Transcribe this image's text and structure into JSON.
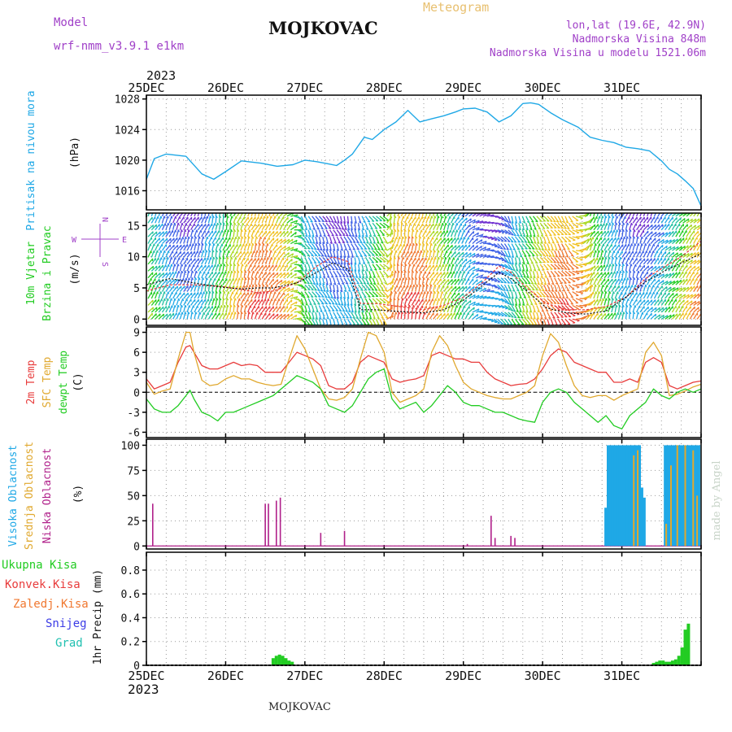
{
  "header": {
    "model_label": "Model",
    "model_name": "wrf-nmm_v3.9.1 e1km",
    "title": "MOJKOVAC",
    "subtitle": "Meteogram",
    "coords": "lon,lat (19.6E, 42.9N)",
    "altitude": "Nadmorska Visina 848m",
    "model_altitude": "Nadmorska Visina u modelu 1521.06m",
    "year": "2023",
    "footer": "MOJKOVAC",
    "credit": "made by Angel"
  },
  "colors": {
    "pressure": "#1fa8e6",
    "t2m": "#e83c3c",
    "sfc": "#e0a82e",
    "dewpt": "#22cc22",
    "high_cloud": "#1fa8e6",
    "mid_cloud": "#e0a82e",
    "low_cloud": "#b0208a",
    "total_precip": "#22cc22",
    "conv_precip": "#e83c3c",
    "frozen_precip": "#f07830",
    "snow": "#3c3ce6",
    "hail": "#20c0b0",
    "model_text": "#a040c8",
    "subtitle": "#e8c070",
    "wind_label": "#22cc22",
    "compass": "#a040c8"
  },
  "chart_data": [
    {
      "type": "line",
      "name": "pressure",
      "ylabel_lines": [
        "Pritisak na nivou mora",
        "(hPa)"
      ],
      "ylim": [
        1013.5,
        1028.5
      ],
      "yticks": [
        1016,
        1020,
        1024,
        1028
      ],
      "grid": true,
      "x": [
        0,
        0.1,
        0.25,
        0.5,
        0.7,
        0.85,
        1.0,
        1.2,
        1.45,
        1.65,
        1.85,
        2.0,
        2.15,
        2.3,
        2.4,
        2.5,
        2.6,
        2.75,
        2.85,
        3.0,
        3.15,
        3.3,
        3.45,
        3.6,
        3.75,
        3.9,
        4.0,
        4.15,
        4.3,
        4.45,
        4.6,
        4.75,
        4.85,
        4.95,
        5.1,
        5.25,
        5.45,
        5.6,
        5.75,
        5.9,
        6.05,
        6.2,
        6.35,
        6.5,
        6.6,
        6.7,
        6.8,
        6.9,
        7.0
      ],
      "y": [
        1017.5,
        1020.2,
        1020.8,
        1020.5,
        1018.2,
        1017.5,
        1018.5,
        1019.9,
        1019.6,
        1019.2,
        1019.4,
        1020.0,
        1019.8,
        1019.5,
        1019.3,
        1020.0,
        1020.8,
        1023.0,
        1022.7,
        1024.0,
        1025.0,
        1026.5,
        1025.0,
        1025.4,
        1025.8,
        1026.3,
        1026.7,
        1026.8,
        1026.3,
        1025.0,
        1025.8,
        1027.4,
        1027.5,
        1027.3,
        1026.2,
        1025.3,
        1024.3,
        1023.0,
        1022.6,
        1022.3,
        1021.7,
        1021.5,
        1021.2,
        1019.9,
        1018.8,
        1018.2,
        1017.3,
        1016.3,
        1014.0
      ]
    },
    {
      "type": "line",
      "name": "wind",
      "ylabel_lines": [
        "10m Vjetar",
        "Brzina i Pravac",
        "(m/s)"
      ],
      "compass_labels": [
        "W",
        "E",
        "N",
        "S"
      ],
      "ylim": [
        -1,
        17
      ],
      "yticks": [
        0,
        5,
        10,
        15
      ],
      "grid": true,
      "x": [
        0,
        0.3,
        0.6,
        0.9,
        1.2,
        1.4,
        1.6,
        1.9,
        2.15,
        2.35,
        2.55,
        2.7,
        2.9,
        3.2,
        3.5,
        3.75,
        4.0,
        4.25,
        4.45,
        4.6,
        4.8,
        5.05,
        5.3,
        5.55,
        5.8,
        6.05,
        6.3,
        6.55,
        6.75,
        7.0
      ],
      "speed": [
        5.5,
        6.5,
        5.8,
        5.2,
        4.8,
        5.0,
        5.0,
        5.8,
        7.5,
        9.0,
        8.0,
        1.5,
        1.5,
        1.2,
        1.0,
        1.5,
        3.0,
        5.5,
        7.5,
        6.5,
        4.5,
        1.8,
        1.0,
        0.8,
        1.3,
        3.5,
        6.0,
        7.8,
        9.0,
        10.5
      ],
      "gust": [
        4.5,
        5.5,
        5.5,
        5.3,
        4.8,
        4.2,
        4.5,
        5.8,
        8.5,
        10.0,
        9.2,
        2.5,
        2.5,
        2.0,
        1.5,
        2.2,
        3.5,
        6.0,
        8.5,
        7.5,
        5.0,
        2.5,
        1.5,
        1.5,
        2.0,
        3.5,
        6.5,
        8.5,
        10.0,
        12.5
      ]
    },
    {
      "type": "line",
      "name": "temperature",
      "ylabel_lines": [
        "2m Temp",
        "SFC Temp",
        "dewpt Temp",
        "(C)"
      ],
      "ylim": [
        -6.8,
        9.8
      ],
      "yticks": [
        -6,
        -3,
        0,
        3,
        6,
        9
      ],
      "grid": true,
      "x": [
        0,
        0.1,
        0.2,
        0.3,
        0.4,
        0.5,
        0.55,
        0.6,
        0.7,
        0.8,
        0.9,
        1.0,
        1.1,
        1.2,
        1.3,
        1.4,
        1.5,
        1.6,
        1.7,
        1.8,
        1.9,
        2.0,
        2.1,
        2.2,
        2.3,
        2.4,
        2.5,
        2.6,
        2.7,
        2.8,
        2.9,
        3.0,
        3.1,
        3.2,
        3.3,
        3.4,
        3.5,
        3.6,
        3.7,
        3.8,
        3.9,
        4.0,
        4.1,
        4.2,
        4.3,
        4.4,
        4.5,
        4.6,
        4.7,
        4.8,
        4.9,
        5.0,
        5.1,
        5.2,
        5.3,
        5.4,
        5.5,
        5.6,
        5.7,
        5.8,
        5.9,
        6.0,
        6.1,
        6.2,
        6.3,
        6.4,
        6.5,
        6.6,
        6.7,
        6.8,
        6.9,
        7.0
      ],
      "series": [
        {
          "name": "2m Temp",
          "values": [
            2.0,
            0.5,
            1.0,
            1.5,
            4.5,
            6.8,
            7.0,
            6.0,
            4.0,
            3.5,
            3.5,
            4.0,
            4.5,
            4.0,
            4.2,
            4.0,
            3.0,
            3.0,
            3.0,
            4.5,
            6.0,
            5.5,
            5.0,
            4.0,
            1.0,
            0.5,
            0.5,
            1.5,
            4.5,
            5.5,
            5.0,
            4.5,
            2.0,
            1.5,
            1.8,
            2.0,
            2.5,
            5.5,
            6.0,
            5.5,
            5.0,
            5.0,
            4.5,
            4.5,
            3.0,
            2.0,
            1.5,
            1.0,
            1.2,
            1.3,
            2.0,
            3.5,
            5.5,
            6.5,
            6.0,
            4.5,
            4.0,
            3.5,
            3.0,
            3.0,
            1.5,
            1.5,
            2.0,
            1.5,
            4.5,
            5.2,
            4.5,
            1.0,
            0.5,
            1.0,
            1.5,
            1.7
          ]
        },
        {
          "name": "SFC Temp",
          "values": [
            1.5,
            -0.3,
            0.2,
            0.5,
            5.0,
            9.0,
            9.0,
            6.0,
            1.8,
            1.0,
            1.2,
            2.0,
            2.5,
            2.0,
            2.0,
            1.5,
            1.2,
            1.0,
            1.2,
            5.0,
            8.5,
            6.5,
            3.5,
            0.5,
            -1.0,
            -1.2,
            -0.8,
            0.5,
            5.0,
            9.0,
            8.5,
            6.0,
            0.0,
            -1.5,
            -1.0,
            -0.5,
            0.5,
            6.0,
            8.5,
            7.0,
            4.0,
            1.5,
            0.5,
            0.0,
            -0.5,
            -0.8,
            -1.0,
            -1.0,
            -0.5,
            0.0,
            1.0,
            5.5,
            8.8,
            7.5,
            4.0,
            1.0,
            -0.5,
            -0.8,
            -0.5,
            -0.5,
            -1.2,
            -0.5,
            0.0,
            0.5,
            6.0,
            7.5,
            5.5,
            -0.5,
            -0.3,
            0.2,
            0.8,
            1.2
          ]
        },
        {
          "name": "dewpt Temp",
          "values": [
            -1.0,
            -2.5,
            -3.0,
            -3.0,
            -2.0,
            -0.5,
            0.3,
            -1.0,
            -3.0,
            -3.5,
            -4.3,
            -3.0,
            -3.0,
            -2.5,
            -2.0,
            -1.5,
            -1.0,
            -0.5,
            0.5,
            1.5,
            2.5,
            2.0,
            1.5,
            0.5,
            -2.0,
            -2.5,
            -3.0,
            -2.0,
            0.0,
            2.0,
            3.0,
            3.5,
            -1.0,
            -2.5,
            -2.0,
            -1.5,
            -3.0,
            -2.0,
            -0.5,
            1.0,
            0.0,
            -1.5,
            -2.0,
            -2.0,
            -2.5,
            -3.0,
            -3.0,
            -3.5,
            -4.0,
            -4.3,
            -4.5,
            -1.5,
            0.0,
            0.5,
            0.0,
            -1.5,
            -2.5,
            -3.5,
            -4.5,
            -3.5,
            -5.0,
            -5.5,
            -3.5,
            -2.5,
            -1.5,
            0.5,
            -0.5,
            -1.0,
            0.0,
            0.5,
            0.0,
            0.5
          ]
        }
      ]
    },
    {
      "type": "bar",
      "name": "cloud",
      "ylabel_lines": [
        "Visoka Oblacnost",
        "Srednja Oblacnost",
        "Niska Oblacnost",
        "(%)"
      ],
      "ylim": [
        -3,
        106
      ],
      "yticks": [
        0,
        25,
        50,
        75,
        100
      ],
      "grid": true,
      "high": [
        [
          5.8,
          38
        ],
        [
          5.83,
          100
        ],
        [
          5.86,
          100
        ],
        [
          5.89,
          100
        ],
        [
          5.92,
          100
        ],
        [
          5.95,
          100
        ],
        [
          5.98,
          100
        ],
        [
          6.01,
          100
        ],
        [
          6.04,
          100
        ],
        [
          6.07,
          100
        ],
        [
          6.1,
          100
        ],
        [
          6.13,
          100
        ],
        [
          6.16,
          100
        ],
        [
          6.19,
          100
        ],
        [
          6.22,
          100
        ],
        [
          6.25,
          58
        ],
        [
          6.28,
          48
        ],
        [
          6.55,
          100
        ],
        [
          6.58,
          100
        ],
        [
          6.61,
          100
        ],
        [
          6.64,
          100
        ],
        [
          6.67,
          100
        ],
        [
          6.7,
          100
        ],
        [
          6.73,
          100
        ],
        [
          6.76,
          100
        ],
        [
          6.79,
          100
        ],
        [
          6.82,
          100
        ],
        [
          6.85,
          100
        ],
        [
          6.88,
          100
        ],
        [
          6.91,
          100
        ],
        [
          6.94,
          100
        ],
        [
          6.97,
          100
        ]
      ],
      "mid": [
        [
          6.15,
          90
        ],
        [
          6.2,
          95
        ],
        [
          6.56,
          22
        ],
        [
          6.62,
          80
        ],
        [
          6.7,
          100
        ],
        [
          6.8,
          100
        ],
        [
          6.9,
          95
        ],
        [
          6.95,
          50
        ]
      ],
      "low": [
        [
          0.08,
          42
        ],
        [
          1.5,
          42
        ],
        [
          1.54,
          42
        ],
        [
          1.64,
          45
        ],
        [
          1.69,
          48
        ],
        [
          2.2,
          13
        ],
        [
          2.5,
          15
        ],
        [
          4.05,
          2
        ],
        [
          4.35,
          30
        ],
        [
          4.4,
          8
        ],
        [
          4.6,
          10
        ],
        [
          4.65,
          8
        ]
      ]
    },
    {
      "type": "bar",
      "name": "precip",
      "ylabel_lines": [
        "1hr Precip (mm)"
      ],
      "legend": [
        "Ukupna Kisa",
        "Konvek.Kisa",
        "Zaledj.Kisa",
        "Snijeg",
        "Grad"
      ],
      "ylim": [
        0,
        0.95
      ],
      "yticks": [
        0,
        0.2,
        0.4,
        0.6,
        0.8
      ],
      "grid": true,
      "values": [
        [
          1.6,
          0.06
        ],
        [
          1.64,
          0.08
        ],
        [
          1.68,
          0.09
        ],
        [
          1.72,
          0.08
        ],
        [
          1.76,
          0.06
        ],
        [
          1.8,
          0.04
        ],
        [
          1.84,
          0.03
        ],
        [
          6.4,
          0.02
        ],
        [
          6.44,
          0.03
        ],
        [
          6.48,
          0.04
        ],
        [
          6.52,
          0.04
        ],
        [
          6.56,
          0.03
        ],
        [
          6.6,
          0.03
        ],
        [
          6.64,
          0.04
        ],
        [
          6.68,
          0.05
        ],
        [
          6.72,
          0.08
        ],
        [
          6.76,
          0.15
        ],
        [
          6.8,
          0.3
        ],
        [
          6.84,
          0.35
        ]
      ]
    }
  ],
  "x_axis": {
    "ticks": [
      "25DEC",
      "26DEC",
      "27DEC",
      "28DEC",
      "29DEC",
      "30DEC",
      "31DEC"
    ],
    "year_top": "2023",
    "year_bottom": "2023"
  }
}
